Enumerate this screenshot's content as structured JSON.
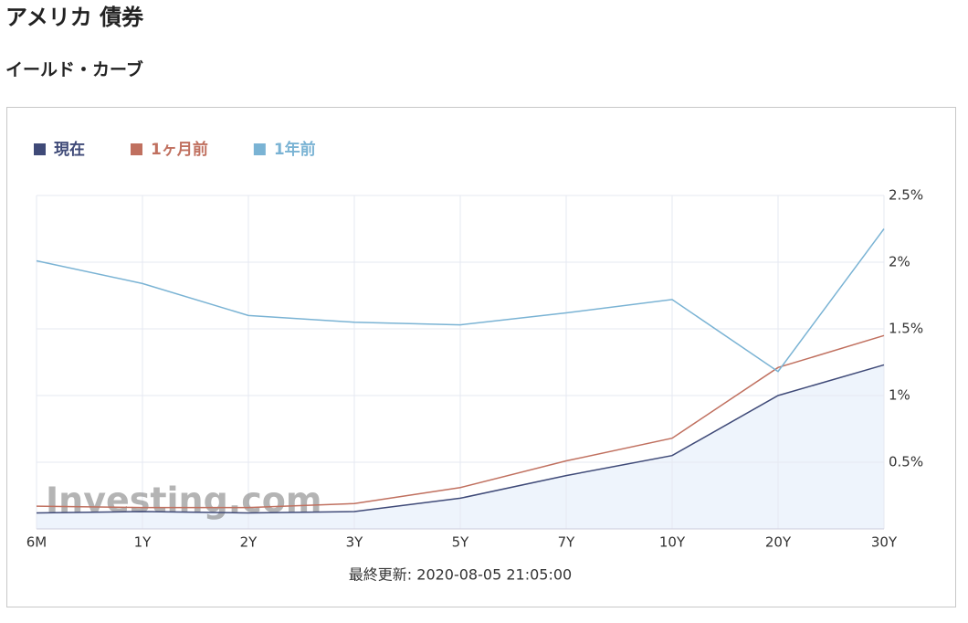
{
  "header": {
    "title": "アメリカ 債券",
    "subtitle": "イールド・カーブ"
  },
  "chart_data": {
    "type": "line",
    "categories": [
      "6M",
      "1Y",
      "2Y",
      "3Y",
      "5Y",
      "7Y",
      "10Y",
      "20Y",
      "30Y"
    ],
    "series": [
      {
        "name": "現在",
        "color": "#3f4a78",
        "values": [
          0.12,
          0.13,
          0.12,
          0.13,
          0.23,
          0.4,
          0.55,
          1.0,
          1.23
        ],
        "area": "#eef4fc"
      },
      {
        "name": "1ヶ月前",
        "color": "#c0705f",
        "values": [
          0.17,
          0.16,
          0.16,
          0.19,
          0.31,
          0.51,
          0.68,
          1.21,
          1.45
        ]
      },
      {
        "name": "1年前",
        "color": "#7ab3d4",
        "values": [
          2.01,
          1.84,
          1.6,
          1.55,
          1.53,
          1.62,
          1.72,
          1.18,
          2.25
        ]
      }
    ],
    "ylim": [
      0,
      2.5
    ],
    "yticks": [
      {
        "value": 0.5,
        "label": "0.5%"
      },
      {
        "value": 1,
        "label": "1%"
      },
      {
        "value": 1.5,
        "label": "1.5%"
      },
      {
        "value": 2,
        "label": "2%"
      },
      {
        "value": 2.5,
        "label": "2.5%"
      }
    ],
    "grid": true,
    "watermark": "Investing.com",
    "footer": "最終更新: 2020-08-05 21:05:00"
  }
}
